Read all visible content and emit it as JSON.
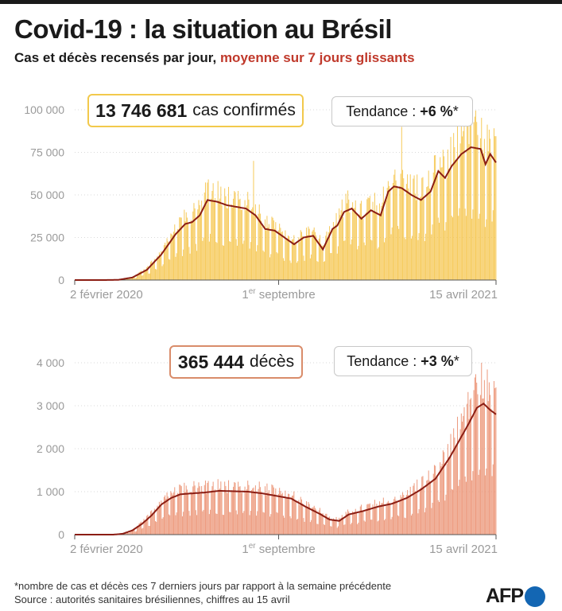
{
  "title": "Covid-19 : la situation au Brésil",
  "subtitle": {
    "part1": "Cas et décès recensés par jour,",
    "part2": "moyenne sur 7 jours glissants"
  },
  "colors": {
    "cases_bar": "#f5c242",
    "deaths_bar": "#ea8b6a",
    "avg_line": "#8b1d13",
    "accent": "#c0392b",
    "axis_text": "#9a9a9a",
    "grid": "#d9d9d9",
    "logo_blue": "#1366b3"
  },
  "cases_box": {
    "number": "13 746 681",
    "label": "cas confirmés"
  },
  "cases_trend": {
    "label": "Tendance :",
    "value": "+6 %",
    "mark": "*"
  },
  "deaths_box": {
    "number": "365 444",
    "label": "décès"
  },
  "deaths_trend": {
    "label": "Tendance :",
    "value": "+3 %",
    "mark": "*"
  },
  "x_axis": {
    "ticks": [
      {
        "label": "2 février 2020",
        "day": 0
      },
      {
        "label": "1er septembre",
        "day": 212
      },
      {
        "label": "15 avril 2021",
        "day": 438
      }
    ]
  },
  "footnote": {
    "line1": "*nombre de cas et décès ces 7 derniers jours par rapport à la semaine précédente",
    "line2": "Source : autorités sanitaires brésiliennes, chiffres au 15 avril"
  },
  "logo": "AFP",
  "chart_data": [
    {
      "type": "bar",
      "title": "cas confirmés",
      "x_unit": "days since 2 février 2020",
      "xlim": [
        0,
        438
      ],
      "ylim": [
        0,
        100000
      ],
      "yticks": [
        0,
        25000,
        50000,
        75000,
        100000
      ],
      "ytick_labels": [
        "0",
        "25 000",
        "50 000",
        "75 000",
        "100 000"
      ],
      "series": [
        {
          "name": "moyenne sur 7 jours glissants (cas)",
          "x": [
            0,
            30,
            45,
            60,
            75,
            90,
            105,
            115,
            122,
            130,
            138,
            148,
            158,
            168,
            178,
            188,
            198,
            208,
            218,
            228,
            238,
            248,
            258,
            268,
            273,
            280,
            288,
            298,
            308,
            318,
            326,
            332,
            340,
            350,
            360,
            370,
            378,
            385,
            392,
            402,
            412,
            422,
            427,
            432,
            438
          ],
          "values": [
            0,
            0,
            100,
            1500,
            6000,
            15000,
            27000,
            33000,
            34000,
            38000,
            47000,
            46000,
            44000,
            43000,
            42000,
            38000,
            30000,
            29000,
            25000,
            21000,
            25000,
            26000,
            18000,
            30000,
            32000,
            40000,
            42000,
            36000,
            41000,
            38000,
            52000,
            55000,
            54000,
            50000,
            47000,
            52000,
            64000,
            60000,
            67000,
            74000,
            78000,
            77000,
            68000,
            74000,
            69000
          ]
        },
        {
          "name": "cas par jour",
          "values_note": "daily bars; estimated as 7-day average with weekly oscillation",
          "notable_spikes": [
            {
              "day": 186,
              "value": 70000
            },
            {
              "day": 340,
              "value": 90000
            },
            {
              "day": 416,
              "value": 96000
            }
          ]
        }
      ]
    },
    {
      "type": "bar",
      "title": "décès",
      "x_unit": "days since 2 février 2020",
      "xlim": [
        0,
        438
      ],
      "ylim": [
        0,
        4000
      ],
      "yticks": [
        0,
        1000,
        2000,
        3000,
        4000
      ],
      "ytick_labels": [
        "0",
        "1 000",
        "2 000",
        "3 000",
        "4 000"
      ],
      "series": [
        {
          "name": "moyenne sur 7 jours glissants (décès)",
          "x": [
            0,
            40,
            50,
            60,
            70,
            80,
            90,
            100,
            110,
            122,
            135,
            150,
            165,
            180,
            195,
            210,
            225,
            240,
            255,
            265,
            275,
            285,
            300,
            315,
            330,
            345,
            360,
            375,
            390,
            400,
            410,
            418,
            425,
            432,
            438
          ],
          "values": [
            0,
            0,
            20,
            100,
            250,
            450,
            700,
            850,
            940,
            960,
            980,
            1020,
            1010,
            1000,
            960,
            900,
            840,
            650,
            480,
            350,
            320,
            470,
            550,
            650,
            720,
            850,
            1050,
            1300,
            1800,
            2200,
            2600,
            2950,
            3050,
            2900,
            2800
          ]
        },
        {
          "name": "décès par jour",
          "values_note": "daily bars; estimated as 7-day average with weekly oscillation",
          "notable_spikes": [
            {
              "day": 423,
              "value": 4200
            }
          ]
        }
      ]
    }
  ]
}
